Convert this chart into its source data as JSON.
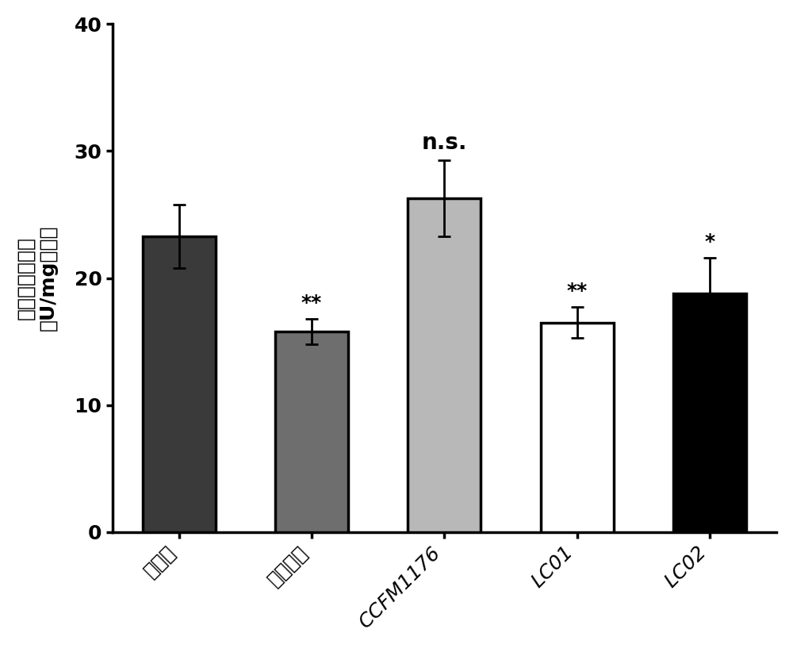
{
  "categories": [
    "对照组",
    "辣椒素组",
    "CCFM1176",
    "LC01",
    "LC02"
  ],
  "values": [
    23.3,
    15.8,
    26.3,
    16.5,
    18.8
  ],
  "errors": [
    2.5,
    1.0,
    3.0,
    1.2,
    2.8
  ],
  "bar_colors": [
    "#3a3a3a",
    "#6e6e6e",
    "#b8b8b8",
    "#ffffff",
    "#000000"
  ],
  "bar_edgecolors": [
    "#000000",
    "#000000",
    "#000000",
    "#000000",
    "#000000"
  ],
  "ylabel_line1": "过氧化氢酶活力",
  "ylabel_line2": "（U/mg蛋白）",
  "ylim": [
    0,
    40
  ],
  "yticks": [
    0,
    10,
    20,
    30,
    40
  ],
  "significance": [
    "",
    "**",
    "n.s.",
    "**",
    "*"
  ],
  "sig_fontsize_ns": 20,
  "sig_fontsize_star": 18,
  "bar_width": 0.55,
  "figsize": [
    10.0,
    8.17
  ],
  "dpi": 100,
  "tick_fontsize": 18,
  "ylabel_fontsize": 18,
  "xlabel_rotation": 45,
  "linewidth": 2.5,
  "capsize": 6,
  "error_linewidth": 2.0,
  "spine_linewidth": 2.5
}
